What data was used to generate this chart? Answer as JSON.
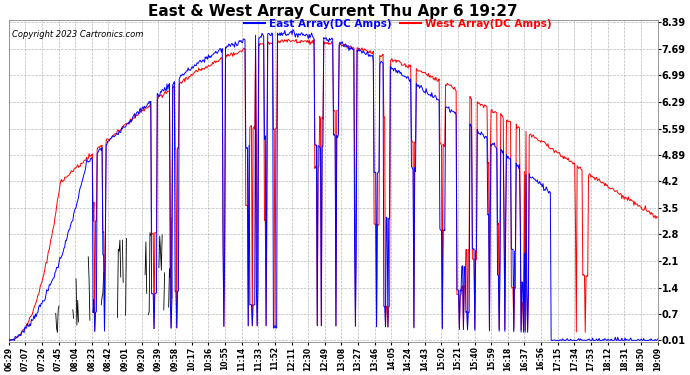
{
  "title": "East & West Array Current Thu Apr 6 19:27",
  "copyright": "Copyright 2023 Cartronics.com",
  "legend_east": "East Array(DC Amps)",
  "legend_west": "West Array(DC Amps)",
  "color_east": "#0000FF",
  "color_west": "#FF0000",
  "color_black": "#000000",
  "background_color": "#FFFFFF",
  "grid_color": "#AAAAAA",
  "yticks": [
    0.01,
    0.7,
    1.4,
    2.1,
    2.8,
    3.5,
    4.2,
    4.89,
    5.59,
    6.29,
    6.99,
    7.69,
    8.39
  ],
  "ylim_min": 0.01,
  "ylim_max": 8.39,
  "xtick_labels": [
    "06:29",
    "07:07",
    "07:26",
    "07:45",
    "08:04",
    "08:23",
    "08:42",
    "09:01",
    "09:20",
    "09:39",
    "09:58",
    "10:17",
    "10:36",
    "10:55",
    "11:14",
    "11:33",
    "11:52",
    "12:11",
    "12:30",
    "12:49",
    "13:08",
    "13:27",
    "13:46",
    "14:05",
    "14:24",
    "14:43",
    "15:02",
    "15:21",
    "15:40",
    "15:59",
    "16:18",
    "16:37",
    "16:56",
    "17:15",
    "17:34",
    "17:53",
    "18:12",
    "18:31",
    "18:50",
    "19:09"
  ],
  "num_points": 800,
  "figwidth": 6.9,
  "figheight": 3.75,
  "dpi": 100
}
